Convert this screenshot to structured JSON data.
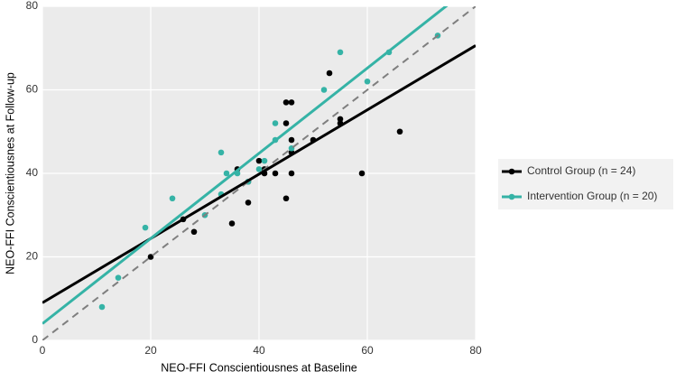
{
  "chart_data": {
    "type": "scatter",
    "xlabel": "NEO-FFI Conscientiousnes at Baseline",
    "ylabel": "NEO-FFI Conscientiousnes at Follow-up",
    "xlim": [
      0,
      80
    ],
    "ylim": [
      0,
      80
    ],
    "xticks": [
      0,
      20,
      40,
      60,
      80
    ],
    "yticks": [
      0,
      20,
      40,
      60,
      80
    ],
    "grid": true,
    "legend": "right",
    "reference_line": {
      "slope": 1,
      "intercept": 0,
      "color": "#7f7f7f",
      "dashed": true
    },
    "series": [
      {
        "name": "Control Group (n = 24)",
        "color": "#000000",
        "x": [
          20,
          26,
          28,
          35,
          36,
          38,
          38,
          40,
          41,
          43,
          45,
          45,
          45,
          46,
          46,
          46,
          50,
          53,
          55,
          55,
          59,
          66,
          46,
          41
        ],
        "values": [
          20,
          29,
          26,
          28,
          41,
          38,
          33,
          43,
          40,
          40,
          34,
          52,
          57,
          57,
          48,
          40,
          48,
          64,
          53,
          52,
          40,
          50,
          45,
          41
        ],
        "fit": {
          "intercept": 9,
          "slope": 0.77
        }
      },
      {
        "name": "Intervention Group (n = 20)",
        "color": "#35b3a6",
        "x": [
          11,
          14,
          19,
          24,
          30,
          33,
          33,
          34,
          36,
          38,
          40,
          41,
          43,
          43,
          46,
          52,
          55,
          60,
          64,
          73
        ],
        "values": [
          8,
          15,
          27,
          34,
          30,
          45,
          35,
          40,
          40,
          38,
          41,
          43,
          52,
          48,
          46,
          60,
          69,
          62,
          69,
          73
        ],
        "fit": {
          "intercept": 4,
          "slope": 1.02
        }
      }
    ]
  }
}
